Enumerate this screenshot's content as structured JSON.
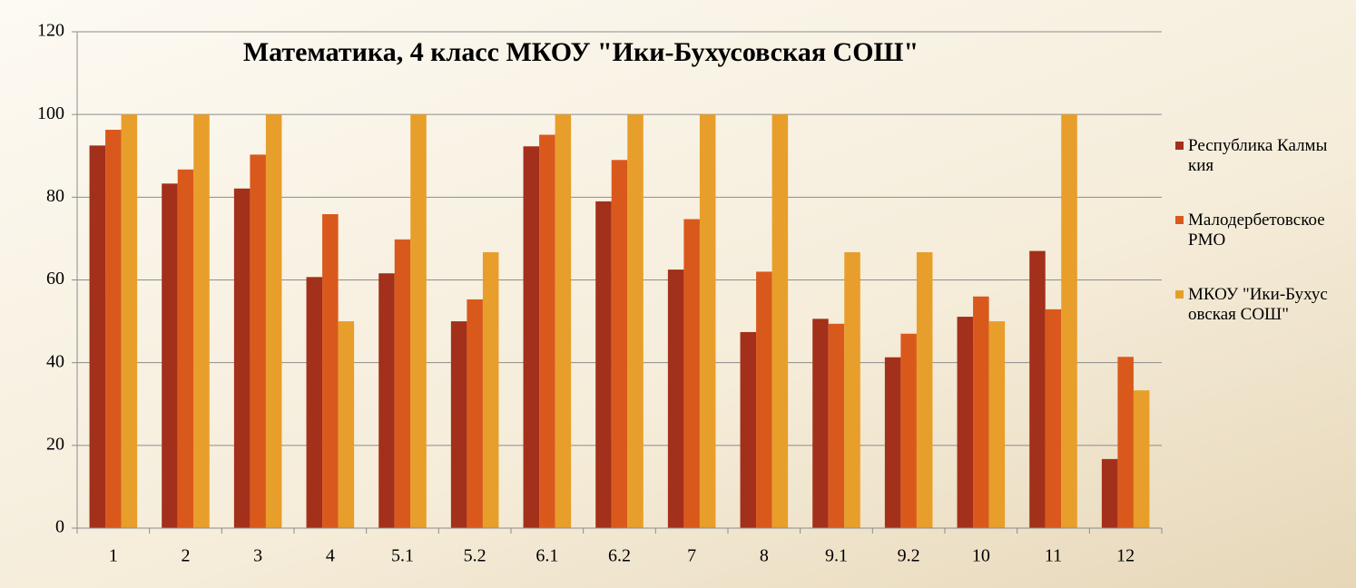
{
  "chart_data": {
    "type": "bar",
    "title": "Математика, 4 класс МКОУ \"Ики-Бухусовская СОШ\"",
    "categories": [
      "1",
      "2",
      "3",
      "4",
      "5.1",
      "5.2",
      "6.1",
      "6.2",
      "7",
      "8",
      "9.1",
      "9.2",
      "10",
      "11",
      "12"
    ],
    "series": [
      {
        "name": "Республика Калмыкия",
        "color": "#a3301a",
        "values": [
          92.5,
          83.3,
          82.1,
          60.7,
          61.6,
          50,
          92.3,
          79,
          62.5,
          47.4,
          50.6,
          41.3,
          51.1,
          67,
          16.7
        ]
      },
      {
        "name": "Малодербетовское РМО",
        "color": "#d9591c",
        "values": [
          96.3,
          86.7,
          90.3,
          75.9,
          69.8,
          55.3,
          95.1,
          89,
          74.7,
          62,
          49.4,
          47,
          56,
          52.9,
          41.4
        ]
      },
      {
        "name": "МКОУ \"Ики-Бухусовская СОШ\"",
        "color": "#e89e2a",
        "values": [
          100,
          100,
          100,
          50,
          100,
          66.7,
          100,
          100,
          100,
          100,
          66.7,
          66.7,
          50,
          100,
          33.3
        ]
      }
    ],
    "ylim": [
      0,
      120
    ],
    "yticks": [
      0,
      20,
      40,
      60,
      80,
      100,
      120
    ],
    "grid": true,
    "legend": "right"
  }
}
